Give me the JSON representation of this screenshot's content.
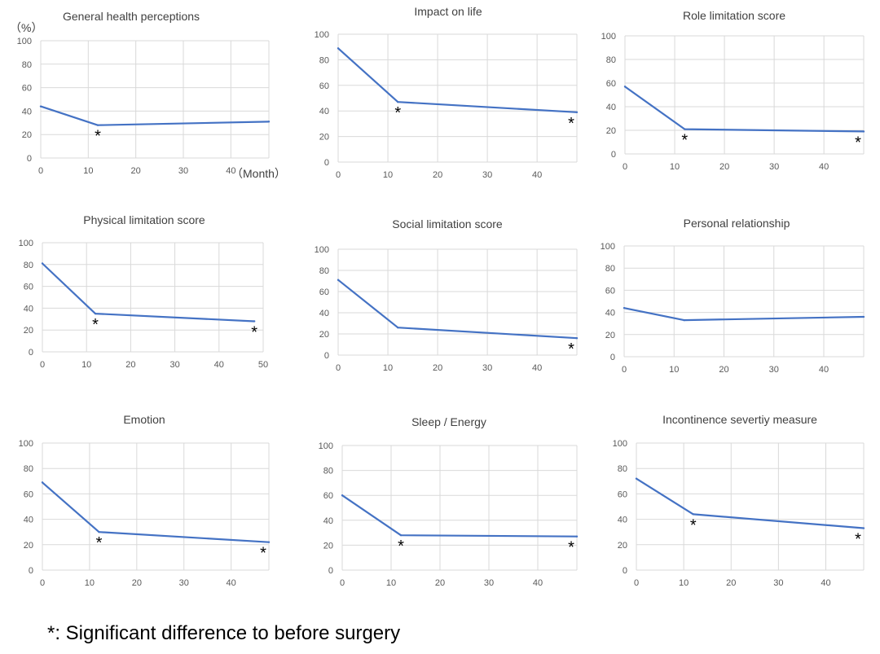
{
  "footnote": "*: Significant difference to before surgery",
  "colors": {
    "line": "#4472c4",
    "grid": "#d9d9d9",
    "marker": "#000000"
  },
  "chart_data": [
    {
      "type": "line",
      "title": "General health perceptions",
      "ylabel": "（%）",
      "xlabel": "（Month）",
      "ylim": [
        0,
        100
      ],
      "xlim": [
        0,
        48
      ],
      "yticks": [
        0,
        20,
        40,
        60,
        80,
        100
      ],
      "xticks": [
        0,
        10,
        20,
        30,
        40
      ],
      "x": [
        0,
        12,
        48
      ],
      "series": [
        {
          "values": [
            44,
            28,
            31
          ]
        }
      ],
      "significant": [
        false,
        true,
        false
      ],
      "grid": "vertical"
    },
    {
      "type": "line",
      "title": "Impact on life",
      "ylim": [
        0,
        100
      ],
      "xlim": [
        0,
        48
      ],
      "yticks": [
        0,
        20,
        40,
        60,
        80,
        100
      ],
      "xticks": [
        0,
        10,
        20,
        30,
        40
      ],
      "x": [
        0,
        12,
        48
      ],
      "series": [
        {
          "values": [
            89,
            47,
            39
          ]
        }
      ],
      "significant": [
        false,
        true,
        true
      ],
      "grid": "vertical"
    },
    {
      "type": "line",
      "title": "Role limitation score",
      "ylim": [
        0,
        100
      ],
      "xlim": [
        0,
        48
      ],
      "yticks": [
        0,
        20,
        40,
        60,
        80,
        100
      ],
      "xticks": [
        0,
        10,
        20,
        30,
        40
      ],
      "x": [
        0,
        12,
        48
      ],
      "series": [
        {
          "values": [
            57,
            21,
            19
          ]
        }
      ],
      "significant": [
        false,
        true,
        true
      ],
      "grid": "vertical"
    },
    {
      "type": "line",
      "title": "Physical limitation score",
      "ylim": [
        0,
        100
      ],
      "xlim": [
        0,
        50
      ],
      "yticks": [
        0,
        20,
        40,
        60,
        80,
        100
      ],
      "xticks": [
        0,
        10,
        20,
        30,
        40,
        50
      ],
      "x": [
        0,
        12,
        48
      ],
      "series": [
        {
          "values": [
            81,
            35,
            28
          ]
        }
      ],
      "significant": [
        false,
        true,
        true
      ],
      "grid": "vertical"
    },
    {
      "type": "line",
      "title": "Social limitation score",
      "ylim": [
        0,
        100
      ],
      "xlim": [
        0,
        48
      ],
      "yticks": [
        0,
        20,
        40,
        60,
        80,
        100
      ],
      "xticks": [
        0,
        10,
        20,
        30,
        40
      ],
      "x": [
        0,
        12,
        48
      ],
      "series": [
        {
          "values": [
            71,
            26,
            16
          ]
        }
      ],
      "significant": [
        false,
        false,
        true
      ],
      "grid": "vertical"
    },
    {
      "type": "line",
      "title": "Personal relationship",
      "ylim": [
        0,
        100
      ],
      "xlim": [
        0,
        48
      ],
      "yticks": [
        0,
        20,
        40,
        60,
        80,
        100
      ],
      "xticks": [
        0,
        10,
        20,
        30,
        40
      ],
      "x": [
        0,
        12,
        48
      ],
      "series": [
        {
          "values": [
            44,
            33,
            36
          ]
        }
      ],
      "significant": [
        false,
        false,
        false
      ],
      "grid": "vertical"
    },
    {
      "type": "line",
      "title": "Emotion",
      "ylim": [
        0,
        100
      ],
      "xlim": [
        0,
        48
      ],
      "yticks": [
        0,
        20,
        40,
        60,
        80,
        100
      ],
      "xticks": [
        0,
        10,
        20,
        30,
        40
      ],
      "x": [
        0,
        12,
        48
      ],
      "series": [
        {
          "values": [
            69,
            30,
            22
          ]
        }
      ],
      "significant": [
        false,
        true,
        true
      ],
      "grid": "vertical"
    },
    {
      "type": "line",
      "title": "Sleep / Energy",
      "ylim": [
        0,
        100
      ],
      "xlim": [
        0,
        48
      ],
      "yticks": [
        0,
        20,
        40,
        60,
        80,
        100
      ],
      "xticks": [
        0,
        10,
        20,
        30,
        40
      ],
      "x": [
        0,
        12,
        48
      ],
      "series": [
        {
          "values": [
            60,
            28,
            27
          ]
        }
      ],
      "significant": [
        false,
        true,
        true
      ],
      "grid": "vertical"
    },
    {
      "type": "line",
      "title": "Incontinence severtiy measure",
      "ylim": [
        0,
        100
      ],
      "xlim": [
        0,
        48
      ],
      "yticks": [
        0,
        20,
        40,
        60,
        80,
        100
      ],
      "xticks": [
        0,
        10,
        20,
        30,
        40
      ],
      "x": [
        0,
        12,
        48
      ],
      "series": [
        {
          "values": [
            72,
            44,
            33
          ]
        }
      ],
      "significant": [
        false,
        true,
        true
      ],
      "grid": "vertical"
    }
  ]
}
